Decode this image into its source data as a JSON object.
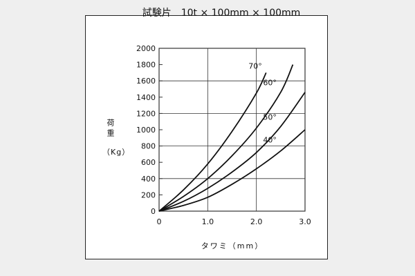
{
  "chart_data": {
    "type": "line",
    "title": "試験片　10t × 100mm × 100mm",
    "xlabel": "タワミ（mm）",
    "ylabel": "荷重",
    "yunit": "（Kg）",
    "xlim": [
      0,
      3.0
    ],
    "ylim": [
      0,
      2000
    ],
    "xticks": [
      "0",
      "1.0",
      "2.0",
      "3.0"
    ],
    "yticks": [
      "0",
      "200",
      "400",
      "600",
      "800",
      "1000",
      "1200",
      "1400",
      "1600",
      "1800",
      "2000"
    ],
    "grid": true,
    "colors": {
      "line": "#111111",
      "grid": "#333333"
    },
    "series": [
      {
        "name": "70°",
        "x": [
          0,
          0.5,
          1.0,
          1.5,
          2.0,
          2.2
        ],
        "y": [
          0,
          260,
          580,
          980,
          1450,
          1700
        ]
      },
      {
        "name": "60°",
        "x": [
          0,
          0.5,
          1.0,
          1.5,
          2.0,
          2.5,
          2.75
        ],
        "y": [
          0,
          180,
          400,
          680,
          1020,
          1460,
          1800
        ]
      },
      {
        "name": "50°",
        "x": [
          0,
          0.5,
          1.0,
          1.5,
          2.0,
          2.5,
          3.0
        ],
        "y": [
          0,
          120,
          280,
          480,
          720,
          1040,
          1460
        ]
      },
      {
        "name": "40°",
        "x": [
          0,
          0.5,
          1.0,
          1.5,
          2.0,
          2.5,
          3.0
        ],
        "y": [
          0,
          70,
          170,
          330,
          520,
          740,
          1000
        ]
      }
    ]
  }
}
